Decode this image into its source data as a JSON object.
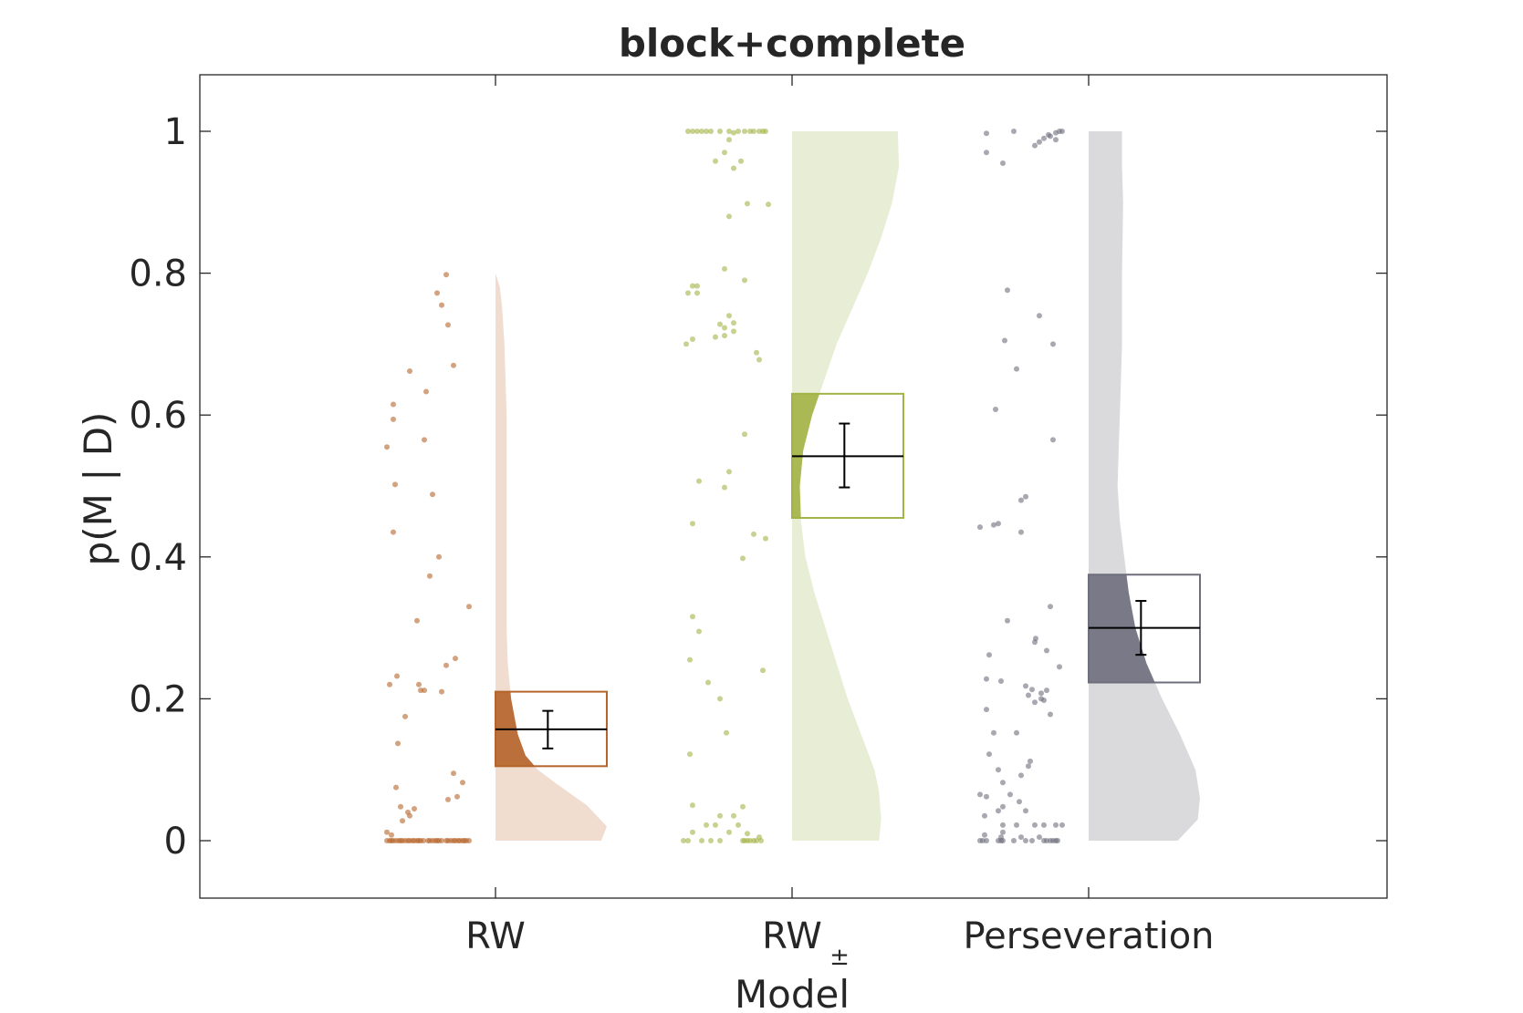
{
  "chart_data": {
    "type": "raincloud",
    "title": "block+complete",
    "xlabel": "Model",
    "ylabel": "p(M | D)",
    "ylim": [
      -0.08,
      1.08
    ],
    "yticks": [
      0,
      0.2,
      0.4,
      0.6,
      0.8,
      1
    ],
    "ytick_labels": [
      "0",
      "0.2",
      "0.4",
      "0.6",
      "0.8",
      "1"
    ],
    "grid": false,
    "categories": [
      {
        "label": "RW",
        "subscript": ""
      },
      {
        "label": "RW",
        "subscript": "±"
      },
      {
        "label": "Perseveration",
        "subscript": ""
      }
    ],
    "series": [
      {
        "color": "#b5642a",
        "cloud_color": "#f0ddd0",
        "box": {
          "low": 0.105,
          "high": 0.21,
          "mean": 0.157
        },
        "errorbar": {
          "low": 0.13,
          "high": 0.183
        },
        "cloud_top": 0.8,
        "cloud_profile": [
          [
            0,
            0.95
          ],
          [
            0.02,
            1.0
          ],
          [
            0.05,
            0.82
          ],
          [
            0.08,
            0.55
          ],
          [
            0.1,
            0.38
          ],
          [
            0.12,
            0.27
          ],
          [
            0.15,
            0.2
          ],
          [
            0.2,
            0.14
          ],
          [
            0.25,
            0.11
          ],
          [
            0.3,
            0.1
          ],
          [
            0.4,
            0.1
          ],
          [
            0.5,
            0.1
          ],
          [
            0.6,
            0.1
          ],
          [
            0.7,
            0.08
          ],
          [
            0.75,
            0.06
          ],
          [
            0.78,
            0.04
          ],
          [
            0.8,
            0.0
          ]
        ],
        "points": [
          [
            0.05,
            0.0
          ],
          [
            0.08,
            0.0
          ],
          [
            0.1,
            0.0
          ],
          [
            0.12,
            0.0
          ],
          [
            0.15,
            0.0
          ],
          [
            0.18,
            0.0
          ],
          [
            0.2,
            0.0
          ],
          [
            0.22,
            0.0
          ],
          [
            0.25,
            0.0
          ],
          [
            0.28,
            0.0
          ],
          [
            0.3,
            0.0
          ],
          [
            0.33,
            0.0
          ],
          [
            0.35,
            0.0
          ],
          [
            0.38,
            0.0
          ],
          [
            0.4,
            0.0
          ],
          [
            0.42,
            0.0
          ],
          [
            0.45,
            0.0
          ],
          [
            0.5,
            0.0
          ],
          [
            0.52,
            0.0
          ],
          [
            0.55,
            0.0
          ],
          [
            0.58,
            0.0
          ],
          [
            0.6,
            0.0
          ],
          [
            0.62,
            0.0
          ],
          [
            0.65,
            0.0
          ],
          [
            0.7,
            0.0
          ],
          [
            0.72,
            0.0
          ],
          [
            0.75,
            0.0
          ],
          [
            0.78,
            0.0
          ],
          [
            0.8,
            0.0
          ],
          [
            0.83,
            0.0
          ],
          [
            0.85,
            0.0
          ],
          [
            0.88,
            0.0
          ],
          [
            0.9,
            0.0
          ],
          [
            0.92,
            0.0
          ],
          [
            0.95,
            0.0
          ],
          [
            0.05,
            0.012
          ],
          [
            0.1,
            0.008
          ],
          [
            0.22,
            0.028
          ],
          [
            0.28,
            0.04
          ],
          [
            0.3,
            0.035
          ],
          [
            0.35,
            0.045
          ],
          [
            0.2,
            0.048
          ],
          [
            0.15,
            0.075
          ],
          [
            0.17,
            0.137
          ],
          [
            0.72,
            0.058
          ],
          [
            0.78,
            0.095
          ],
          [
            0.82,
            0.062
          ],
          [
            0.88,
            0.082
          ],
          [
            0.08,
            0.22
          ],
          [
            0.16,
            0.232
          ],
          [
            0.25,
            0.175
          ],
          [
            0.4,
            0.22
          ],
          [
            0.42,
            0.212
          ],
          [
            0.46,
            0.212
          ],
          [
            0.65,
            0.21
          ],
          [
            0.7,
            0.247
          ],
          [
            0.8,
            0.257
          ],
          [
            0.95,
            0.33
          ],
          [
            0.38,
            0.31
          ],
          [
            0.52,
            0.373
          ],
          [
            0.62,
            0.4
          ],
          [
            0.12,
            0.435
          ],
          [
            0.55,
            0.488
          ],
          [
            0.14,
            0.502
          ],
          [
            0.05,
            0.555
          ],
          [
            0.46,
            0.565
          ],
          [
            0.12,
            0.594
          ],
          [
            0.12,
            0.615
          ],
          [
            0.48,
            0.633
          ],
          [
            0.3,
            0.662
          ],
          [
            0.78,
            0.67
          ],
          [
            0.72,
            0.727
          ],
          [
            0.65,
            0.755
          ],
          [
            0.6,
            0.772
          ],
          [
            0.7,
            0.798
          ]
        ]
      },
      {
        "color": "#a4b346",
        "cloud_color": "#e8edd6",
        "box": {
          "low": 0.455,
          "high": 0.63,
          "mean": 0.542
        },
        "errorbar": {
          "low": 0.498,
          "high": 0.588
        },
        "cloud_top": 1.0,
        "cloud_profile": [
          [
            0,
            0.78
          ],
          [
            0.03,
            0.8
          ],
          [
            0.07,
            0.78
          ],
          [
            0.1,
            0.74
          ],
          [
            0.15,
            0.62
          ],
          [
            0.2,
            0.5
          ],
          [
            0.25,
            0.4
          ],
          [
            0.3,
            0.3
          ],
          [
            0.35,
            0.2
          ],
          [
            0.4,
            0.12
          ],
          [
            0.45,
            0.08
          ],
          [
            0.5,
            0.07
          ],
          [
            0.55,
            0.1
          ],
          [
            0.6,
            0.18
          ],
          [
            0.7,
            0.4
          ],
          [
            0.8,
            0.68
          ],
          [
            0.85,
            0.8
          ],
          [
            0.9,
            0.9
          ],
          [
            0.95,
            0.96
          ],
          [
            1.0,
            0.95
          ]
        ],
        "points": [
          [
            0.05,
            0.0
          ],
          [
            0.1,
            0.0
          ],
          [
            0.25,
            0.0
          ],
          [
            0.35,
            0.0
          ],
          [
            0.45,
            0.0
          ],
          [
            0.7,
            0.0
          ],
          [
            0.72,
            0.0
          ],
          [
            0.75,
            0.0
          ],
          [
            0.78,
            0.0
          ],
          [
            0.82,
            0.0
          ],
          [
            0.85,
            0.0
          ],
          [
            0.9,
            0.0
          ],
          [
            0.15,
            0.012
          ],
          [
            0.3,
            0.022
          ],
          [
            0.4,
            0.022
          ],
          [
            0.55,
            0.012
          ],
          [
            0.6,
            0.035
          ],
          [
            0.65,
            0.022
          ],
          [
            0.45,
            0.035
          ],
          [
            0.7,
            0.048
          ],
          [
            0.15,
            0.05
          ],
          [
            0.75,
            0.01
          ],
          [
            0.88,
            0.005
          ],
          [
            0.12,
            0.122
          ],
          [
            0.52,
            0.152
          ],
          [
            0.45,
            0.2
          ],
          [
            0.32,
            0.223
          ],
          [
            0.12,
            0.255
          ],
          [
            0.22,
            0.295
          ],
          [
            0.15,
            0.316
          ],
          [
            0.92,
            0.24
          ],
          [
            0.7,
            0.398
          ],
          [
            0.82,
            0.432
          ],
          [
            0.95,
            0.426
          ],
          [
            0.15,
            0.447
          ],
          [
            0.5,
            0.498
          ],
          [
            0.22,
            0.507
          ],
          [
            0.55,
            0.52
          ],
          [
            0.72,
            0.573
          ],
          [
            0.88,
            0.678
          ],
          [
            0.85,
            0.688
          ],
          [
            0.08,
            0.7
          ],
          [
            0.15,
            0.707
          ],
          [
            0.4,
            0.71
          ],
          [
            0.5,
            0.712
          ],
          [
            0.6,
            0.718
          ],
          [
            0.45,
            0.728
          ],
          [
            0.6,
            0.73
          ],
          [
            0.55,
            0.74
          ],
          [
            0.5,
            0.723
          ],
          [
            0.1,
            0.772
          ],
          [
            0.2,
            0.772
          ],
          [
            0.15,
            0.782
          ],
          [
            0.2,
            0.782
          ],
          [
            0.72,
            0.79
          ],
          [
            0.5,
            0.806
          ],
          [
            0.55,
            0.88
          ],
          [
            0.75,
            0.898
          ],
          [
            0.98,
            0.897
          ],
          [
            0.6,
            0.948
          ],
          [
            0.5,
            0.97
          ],
          [
            0.68,
            0.958
          ],
          [
            0.4,
            0.958
          ],
          [
            0.55,
            0.988
          ],
          [
            0.6,
            0.998
          ],
          [
            0.1,
            1.0
          ],
          [
            0.15,
            1.0
          ],
          [
            0.2,
            1.0
          ],
          [
            0.25,
            1.0
          ],
          [
            0.3,
            1.0
          ],
          [
            0.35,
            1.0
          ],
          [
            0.45,
            1.0
          ],
          [
            0.55,
            1.0
          ],
          [
            0.65,
            1.0
          ],
          [
            0.72,
            1.0
          ],
          [
            0.78,
            1.0
          ],
          [
            0.82,
            1.0
          ],
          [
            0.88,
            1.0
          ],
          [
            0.92,
            1.0
          ],
          [
            0.95,
            1.0
          ]
        ]
      },
      {
        "color": "#6e6e7d",
        "cloud_color": "#dadadd",
        "box": {
          "low": 0.223,
          "high": 0.375,
          "mean": 0.3
        },
        "errorbar": {
          "low": 0.262,
          "high": 0.338
        },
        "cloud_top": 1.0,
        "cloud_profile": [
          [
            0,
            0.8
          ],
          [
            0.03,
            0.98
          ],
          [
            0.06,
            1.0
          ],
          [
            0.1,
            0.96
          ],
          [
            0.15,
            0.82
          ],
          [
            0.2,
            0.66
          ],
          [
            0.25,
            0.52
          ],
          [
            0.3,
            0.42
          ],
          [
            0.35,
            0.36
          ],
          [
            0.4,
            0.32
          ],
          [
            0.45,
            0.28
          ],
          [
            0.5,
            0.26
          ],
          [
            0.55,
            0.27
          ],
          [
            0.6,
            0.28
          ],
          [
            0.7,
            0.3
          ],
          [
            0.8,
            0.3
          ],
          [
            0.9,
            0.31
          ],
          [
            0.95,
            0.3
          ],
          [
            1.0,
            0.3
          ]
        ],
        "points": [
          [
            0.05,
            0.0
          ],
          [
            0.08,
            0.0
          ],
          [
            0.12,
            0.0
          ],
          [
            0.25,
            0.0
          ],
          [
            0.28,
            0.0
          ],
          [
            0.3,
            0.0
          ],
          [
            0.42,
            0.0
          ],
          [
            0.55,
            0.0
          ],
          [
            0.62,
            0.0
          ],
          [
            0.75,
            0.0
          ],
          [
            0.78,
            0.0
          ],
          [
            0.82,
            0.0
          ],
          [
            0.85,
            0.0
          ],
          [
            0.88,
            0.0
          ],
          [
            0.9,
            0.0
          ],
          [
            0.1,
            0.008
          ],
          [
            0.28,
            0.005
          ],
          [
            0.5,
            0.005
          ],
          [
            0.7,
            0.005
          ],
          [
            0.3,
            0.012
          ],
          [
            0.95,
            0.022
          ],
          [
            0.88,
            0.022
          ],
          [
            0.65,
            0.022
          ],
          [
            0.75,
            0.022
          ],
          [
            0.45,
            0.022
          ],
          [
            0.3,
            0.022
          ],
          [
            0.1,
            0.035
          ],
          [
            0.25,
            0.042
          ],
          [
            0.55,
            0.042
          ],
          [
            0.3,
            0.048
          ],
          [
            0.48,
            0.055
          ],
          [
            0.12,
            0.062
          ],
          [
            0.38,
            0.065
          ],
          [
            0.05,
            0.065
          ],
          [
            0.3,
            0.082
          ],
          [
            0.5,
            0.092
          ],
          [
            0.25,
            0.1
          ],
          [
            0.58,
            0.105
          ],
          [
            0.6,
            0.112
          ],
          [
            0.15,
            0.122
          ],
          [
            0.2,
            0.152
          ],
          [
            0.45,
            0.152
          ],
          [
            0.12,
            0.185
          ],
          [
            0.82,
            0.178
          ],
          [
            0.65,
            0.195
          ],
          [
            0.72,
            0.2
          ],
          [
            0.75,
            0.198
          ],
          [
            0.72,
            0.208
          ],
          [
            0.78,
            0.212
          ],
          [
            0.55,
            0.218
          ],
          [
            0.62,
            0.213
          ],
          [
            0.58,
            0.205
          ],
          [
            0.28,
            0.225
          ],
          [
            0.12,
            0.228
          ],
          [
            0.92,
            0.245
          ],
          [
            0.15,
            0.262
          ],
          [
            0.78,
            0.268
          ],
          [
            0.65,
            0.28
          ],
          [
            0.66,
            0.285
          ],
          [
            0.35,
            0.31
          ],
          [
            0.82,
            0.33
          ],
          [
            0.5,
            0.435
          ],
          [
            0.05,
            0.442
          ],
          [
            0.2,
            0.445
          ],
          [
            0.25,
            0.447
          ],
          [
            0.5,
            0.48
          ],
          [
            0.55,
            0.485
          ],
          [
            0.85,
            0.565
          ],
          [
            0.22,
            0.608
          ],
          [
            0.45,
            0.665
          ],
          [
            0.32,
            0.705
          ],
          [
            0.85,
            0.7
          ],
          [
            0.7,
            0.74
          ],
          [
            0.35,
            0.776
          ],
          [
            0.3,
            0.955
          ],
          [
            0.12,
            0.97
          ],
          [
            0.65,
            0.98
          ],
          [
            0.7,
            0.985
          ],
          [
            0.75,
            0.99
          ],
          [
            0.8,
            0.995
          ],
          [
            0.88,
            0.998
          ],
          [
            0.92,
            1.0
          ],
          [
            0.95,
            1.0
          ],
          [
            0.12,
            0.997
          ],
          [
            0.42,
            1.0
          ],
          [
            0.88,
            0.988
          ],
          [
            0.82,
            0.993
          ]
        ]
      }
    ]
  }
}
